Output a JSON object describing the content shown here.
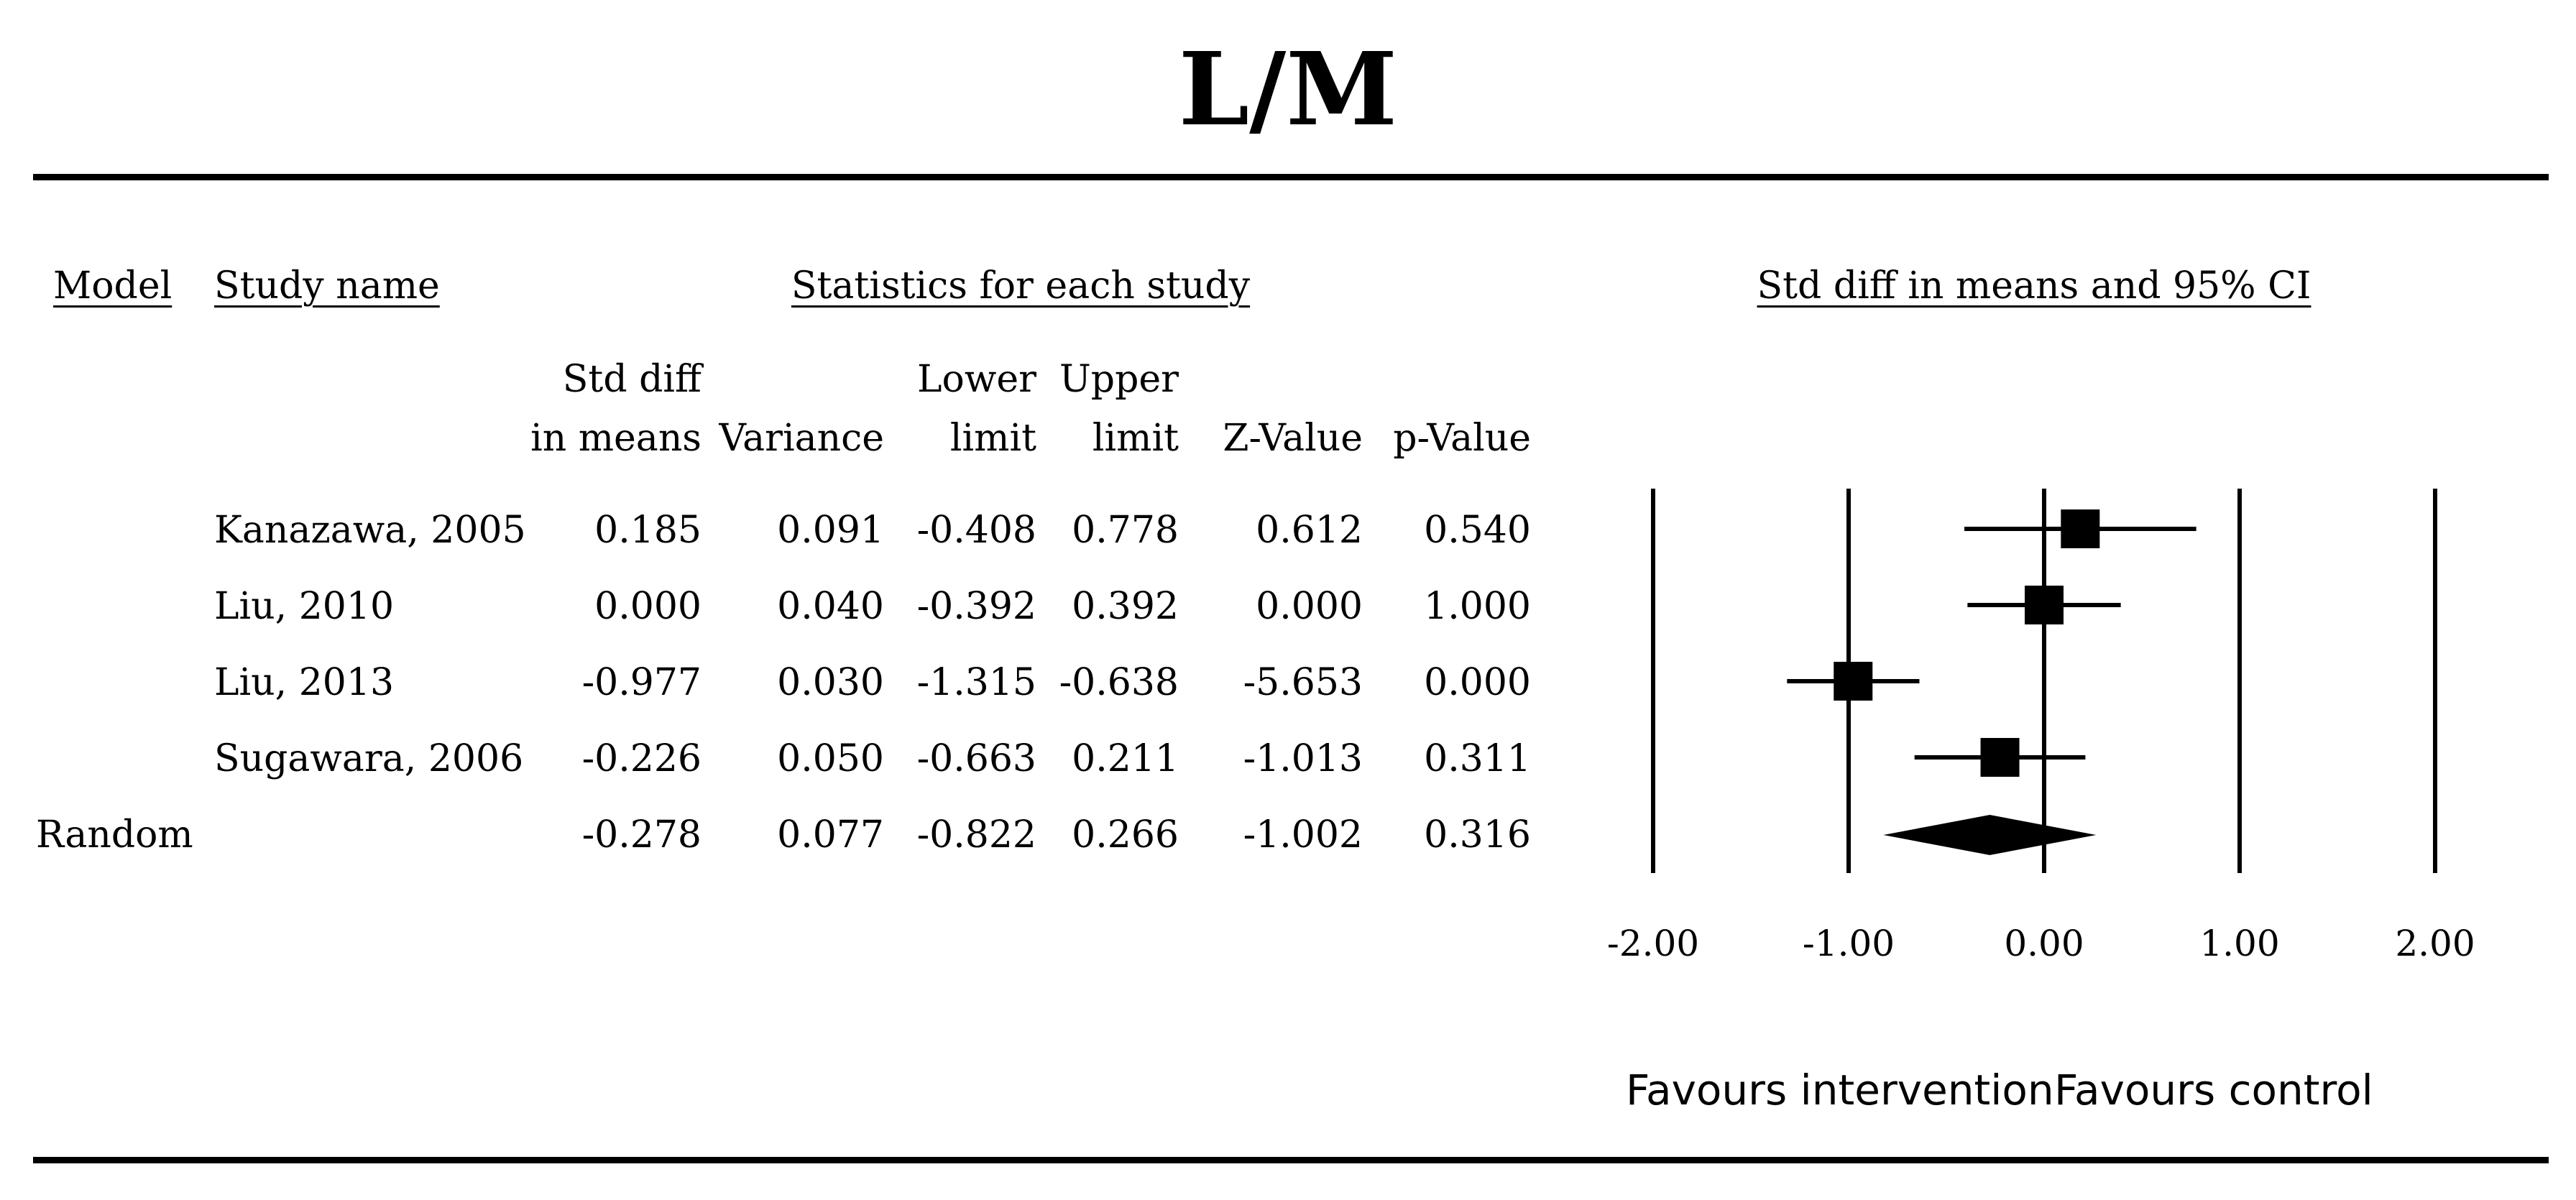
{
  "title": "L/M",
  "headers": {
    "model": "Model",
    "study": "Study name",
    "stats": "Statistics for each study",
    "ci": "Std diff in means and 95% CI"
  },
  "columns": [
    {
      "line1": "Std diff",
      "line2": "in means"
    },
    {
      "line1": "",
      "line2": "Variance"
    },
    {
      "line1": "Lower",
      "line2": "limit"
    },
    {
      "line1": "Upper",
      "line2": "limit"
    },
    {
      "line1": "",
      "line2": "Z-Value"
    },
    {
      "line1": "",
      "line2": "p-Value"
    }
  ],
  "rows": [
    {
      "model": "",
      "study": "Kanazawa, 2005",
      "cells": [
        "0.185",
        "0.091",
        "-0.408",
        "0.778",
        "0.612",
        "0.540"
      ]
    },
    {
      "model": "",
      "study": "Liu, 2010",
      "cells": [
        "0.000",
        "0.040",
        "-0.392",
        "0.392",
        "0.000",
        "1.000"
      ]
    },
    {
      "model": "",
      "study": "Liu, 2013",
      "cells": [
        "-0.977",
        "0.030",
        "-1.315",
        "-0.638",
        "-5.653",
        "0.000"
      ]
    },
    {
      "model": "",
      "study": "Sugawara, 2006",
      "cells": [
        "-0.226",
        "0.050",
        "-0.663",
        "0.211",
        "-1.013",
        "0.311"
      ]
    },
    {
      "model": "Random",
      "study": "",
      "cells": [
        "-0.278",
        "0.077",
        "-0.822",
        "0.266",
        "-1.002",
        "0.316"
      ]
    }
  ],
  "favours": {
    "left": "Favours intervention",
    "right": "Favours control"
  },
  "chart_data": {
    "type": "forest",
    "title": "L/M",
    "xlabel": "Std diff in means and 95% CI",
    "xlim": [
      -2,
      2
    ],
    "ticks": [
      -2,
      -1,
      0,
      1,
      2
    ],
    "tick_labels": [
      "-2.00",
      "-1.00",
      "0.00",
      "1.00",
      "2.00"
    ],
    "studies": [
      {
        "name": "Kanazawa, 2005",
        "estimate": 0.185,
        "lower": -0.408,
        "upper": 0.778
      },
      {
        "name": "Liu, 2010",
        "estimate": 0.0,
        "lower": -0.392,
        "upper": 0.392
      },
      {
        "name": "Liu, 2013",
        "estimate": -0.977,
        "lower": -1.315,
        "upper": -0.638
      },
      {
        "name": "Sugawara, 2006",
        "estimate": -0.226,
        "lower": -0.663,
        "upper": 0.211
      }
    ],
    "summary": {
      "name": "Random",
      "estimate": -0.278,
      "lower": -0.822,
      "upper": 0.266
    },
    "colors": {
      "marks": "#000000"
    }
  }
}
